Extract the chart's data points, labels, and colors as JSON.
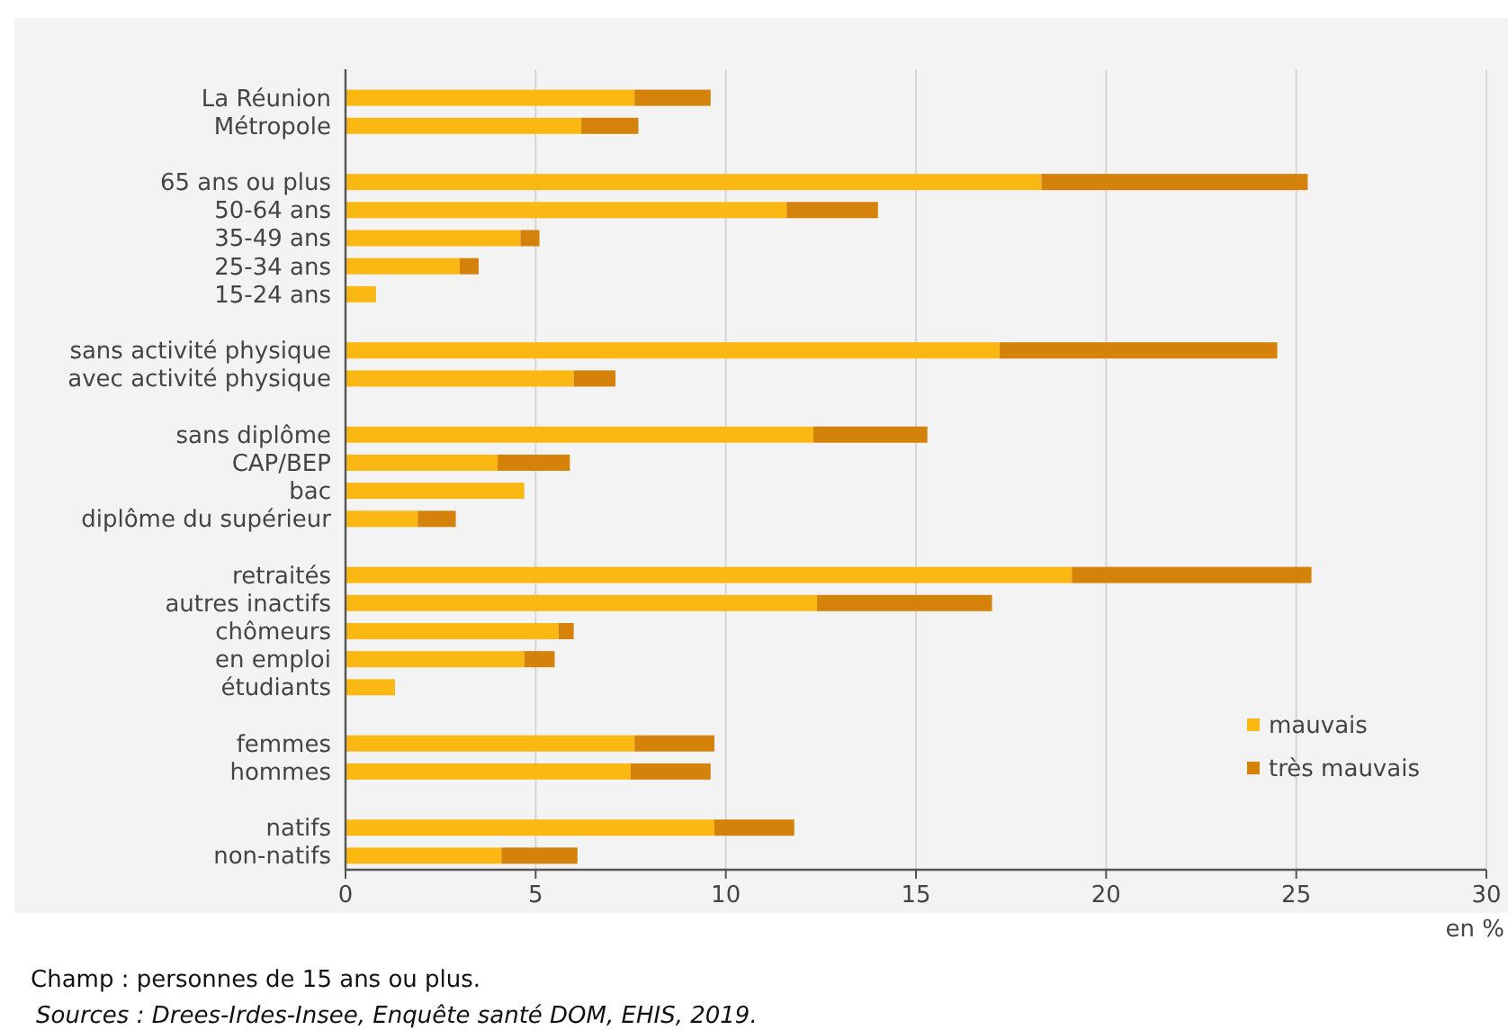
{
  "chart_data": {
    "type": "bar",
    "orientation": "horizontal",
    "stacked": true,
    "categories": [
      "La Réunion",
      "Métropole",
      null,
      "65 ans ou plus",
      "50-64 ans",
      "35-49 ans",
      "25-34 ans",
      "15-24 ans",
      null,
      "sans activité physique",
      "avec activité physique",
      null,
      "sans diplôme",
      "CAP/BEP",
      "bac",
      "diplôme du supérieur",
      null,
      "retraités",
      "autres inactifs",
      "chômeurs",
      "en emploi",
      "étudiants",
      null,
      "femmes",
      "hommes",
      null,
      "natifs",
      "non-natifs"
    ],
    "series": [
      {
        "name": "mauvais",
        "color": "#fbb812",
        "values": [
          7.6,
          6.2,
          null,
          18.3,
          11.6,
          4.6,
          3.0,
          0.8,
          null,
          17.2,
          6.0,
          null,
          12.3,
          4.0,
          4.7,
          1.9,
          null,
          19.1,
          12.4,
          5.6,
          4.7,
          1.3,
          null,
          7.6,
          7.5,
          null,
          9.7,
          4.1
        ]
      },
      {
        "name": "très mauvais",
        "color": "#d4820a",
        "values": [
          2.0,
          1.5,
          null,
          7.0,
          2.4,
          0.5,
          0.5,
          0,
          null,
          7.3,
          1.1,
          null,
          3.0,
          1.9,
          0,
          1.0,
          null,
          6.3,
          4.6,
          0.4,
          0.8,
          0,
          null,
          2.1,
          2.1,
          null,
          2.1,
          2.0
        ]
      }
    ],
    "xlim": [
      0,
      30
    ],
    "xticks": [
      0,
      5,
      10,
      15,
      20,
      25,
      30
    ],
    "xlabel": "en %",
    "grid": "x",
    "legend": "bottom right",
    "annotations": [
      "Champ : personnes de 15 ans ou plus.",
      "Sources : Drees-Irdes-Insee, Enquête santé DOM, EHIS, 2019."
    ]
  }
}
